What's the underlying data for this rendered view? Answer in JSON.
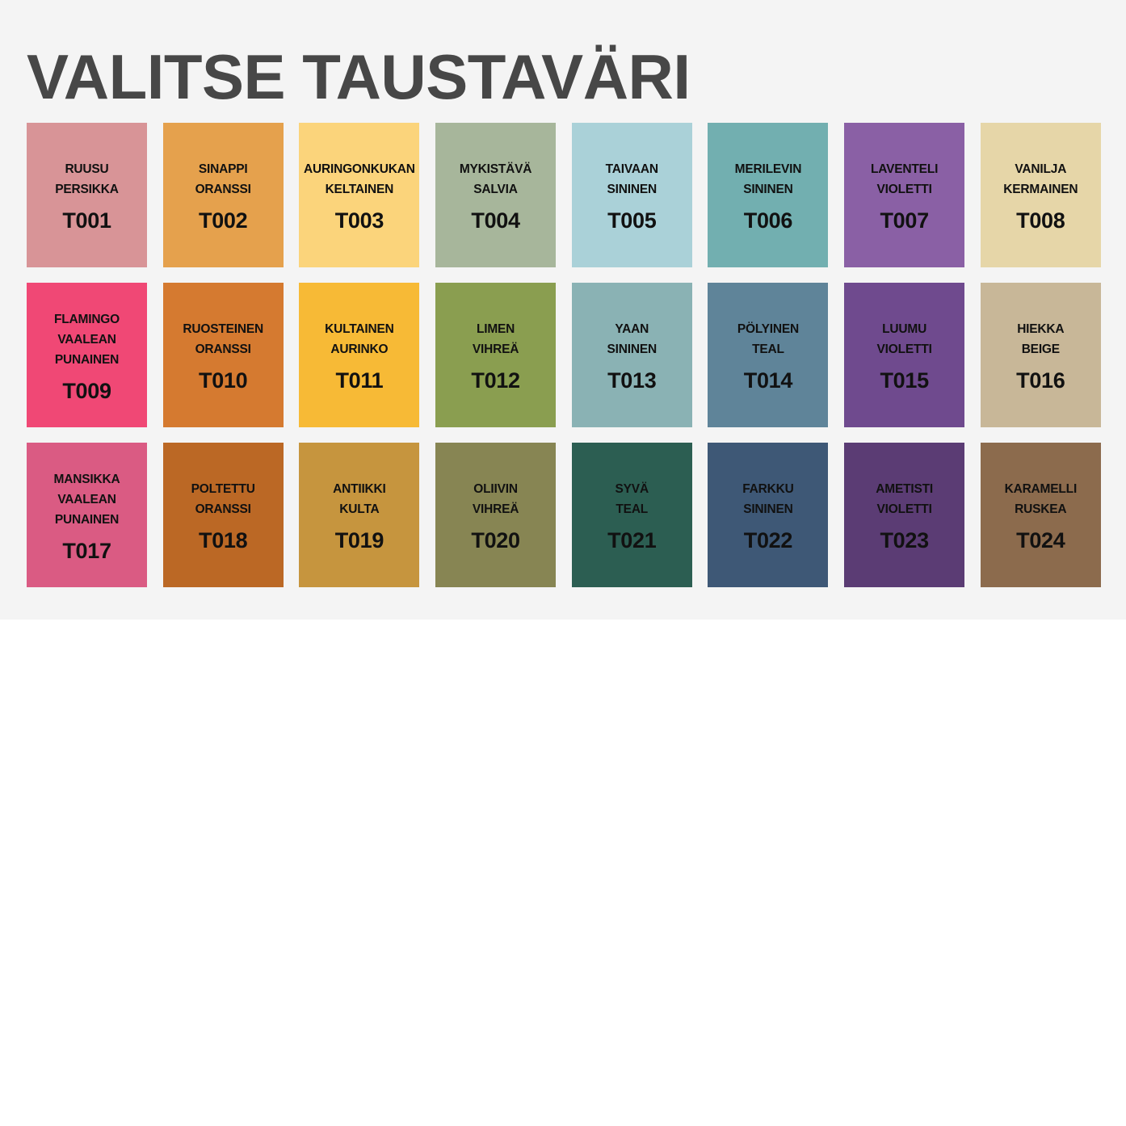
{
  "title": "VALITSE TAUSTAVÄRI",
  "swatches": [
    {
      "lines": [
        "RUUSU",
        "PERSIKKA"
      ],
      "code": "T001",
      "color": "#d89497"
    },
    {
      "lines": [
        "SINAPPI",
        "ORANSSI"
      ],
      "code": "T002",
      "color": "#e5a14d"
    },
    {
      "lines": [
        "AURINGONKUKAN",
        "KELTAINEN"
      ],
      "code": "T003",
      "color": "#fbd47b"
    },
    {
      "lines": [
        "MYKISTÄVÄ",
        "SALVIA"
      ],
      "code": "T004",
      "color": "#a7b69b"
    },
    {
      "lines": [
        "TAIVAAN",
        "SININEN"
      ],
      "code": "T005",
      "color": "#aad1d8"
    },
    {
      "lines": [
        "MERILEVIN",
        "SININEN"
      ],
      "code": "T006",
      "color": "#72afb0"
    },
    {
      "lines": [
        "LAVENTELI",
        "VIOLETTI"
      ],
      "code": "T007",
      "color": "#8a60a5"
    },
    {
      "lines": [
        "VANILJA",
        "KERMAINEN"
      ],
      "code": "T008",
      "color": "#e6d6a8"
    },
    {
      "lines": [
        "FLAMINGO",
        "VAALEAN",
        "PUNAINEN"
      ],
      "code": "T009",
      "color": "#f04875"
    },
    {
      "lines": [
        "RUOSTEINEN",
        "ORANSSI"
      ],
      "code": "T010",
      "color": "#d57a30"
    },
    {
      "lines": [
        "KULTAINEN",
        "AURINKO"
      ],
      "code": "T011",
      "color": "#f7ba36"
    },
    {
      "lines": [
        "LIMEN",
        "VIHREÄ"
      ],
      "code": "T012",
      "color": "#8a9e50"
    },
    {
      "lines": [
        "YAAN",
        "SININEN"
      ],
      "code": "T013",
      "color": "#8ab2b4"
    },
    {
      "lines": [
        "PÖLYINEN",
        "TEAL"
      ],
      "code": "T014",
      "color": "#5f8499"
    },
    {
      "lines": [
        "LUUMU",
        "VIOLETTI"
      ],
      "code": "T015",
      "color": "#6f4a8e"
    },
    {
      "lines": [
        "HIEKKA",
        "BEIGE"
      ],
      "code": "T016",
      "color": "#c8b798"
    },
    {
      "lines": [
        "MANSIKKA",
        "VAALEAN",
        "PUNAINEN"
      ],
      "code": "T017",
      "color": "#da5b83"
    },
    {
      "lines": [
        "POLTETTU",
        "ORANSSI"
      ],
      "code": "T018",
      "color": "#bb6825"
    },
    {
      "lines": [
        "ANTIIKKI",
        "KULTA"
      ],
      "code": "T019",
      "color": "#c6953e"
    },
    {
      "lines": [
        "OLIIVIN",
        "VIHREÄ"
      ],
      "code": "T020",
      "color": "#878553"
    },
    {
      "lines": [
        "SYVÄ",
        "TEAL"
      ],
      "code": "T021",
      "color": "#2c5e52"
    },
    {
      "lines": [
        "FARKKU",
        "SININEN"
      ],
      "code": "T022",
      "color": "#3e5876"
    },
    {
      "lines": [
        "AMETISTI",
        "VIOLETTI"
      ],
      "code": "T023",
      "color": "#5b3c74"
    },
    {
      "lines": [
        "KARAMELLI",
        "RUSKEA"
      ],
      "code": "T024",
      "color": "#8c6b4d"
    }
  ]
}
